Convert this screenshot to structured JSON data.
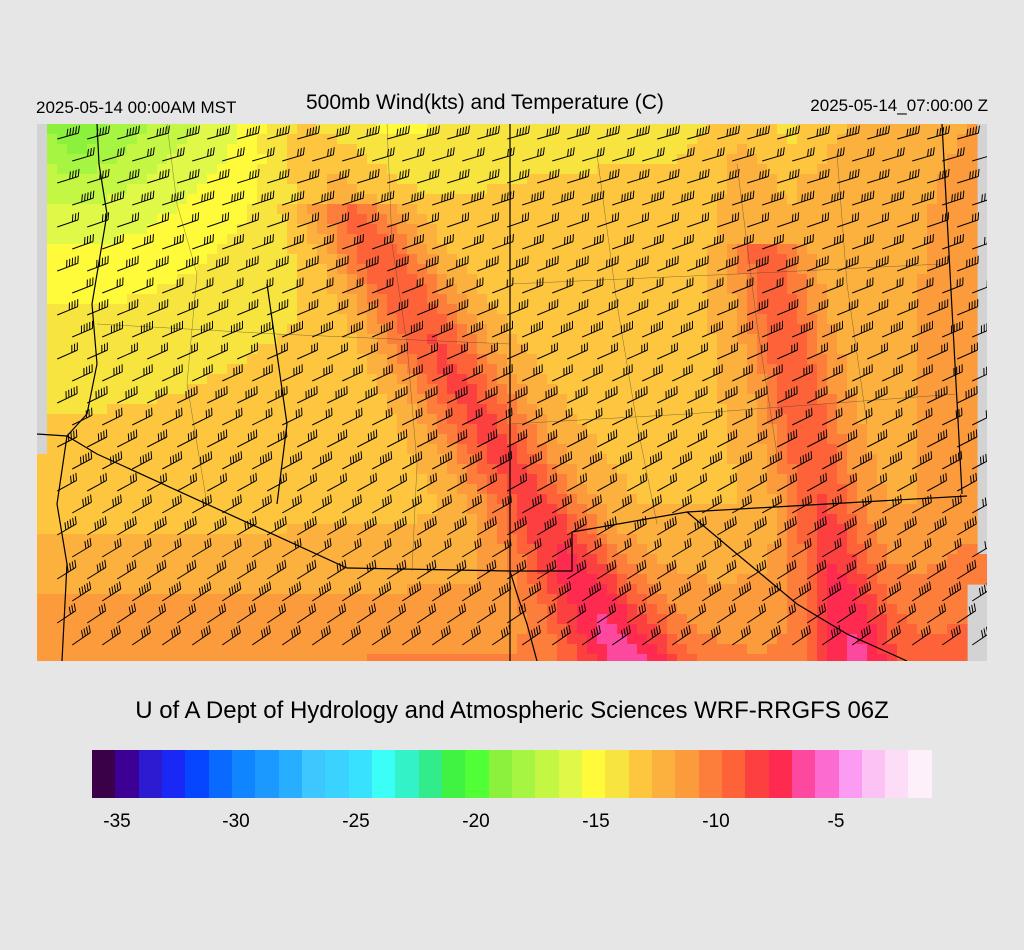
{
  "header": {
    "valid_local": "2025-05-14 00:00AM MST",
    "title": "500mb Wind(kts) and Temperature (C)",
    "valid_utc": "2025-05-14_07:00:00 Z"
  },
  "footer": {
    "credit": "U of A Dept of Hydrology and Atmospheric Sciences WRF-RRGFS 06Z"
  },
  "colorbar": {
    "colors": [
      "#3a0048",
      "#3c0095",
      "#2d1bd2",
      "#1a28f5",
      "#0646ff",
      "#0a6aff",
      "#1184ff",
      "#1c99ff",
      "#28aeff",
      "#3ec6ff",
      "#3ad2ff",
      "#38e2ff",
      "#3bfff6",
      "#34f2c8",
      "#32ec8c",
      "#40f241",
      "#50ff36",
      "#8cf13c",
      "#a6f542",
      "#c4f744",
      "#e0f848",
      "#fffa3a",
      "#f8e43e",
      "#fdc63e",
      "#fcb03d",
      "#fc9b3c",
      "#fc7e3a",
      "#fd6239",
      "#fc4040",
      "#fe2a50",
      "#fc489f",
      "#fc6cd0",
      "#fb9cf2",
      "#fcc2f3",
      "#fddcf8",
      "#fef0fb"
    ],
    "tick_labels": [
      "-35",
      "-30",
      "-25",
      "-20",
      "-15",
      "-10",
      "-5"
    ]
  },
  "map": {
    "field": "temperature",
    "min_temp": -19,
    "max_temp": -5.5,
    "wind_direction": "westerly"
  }
}
